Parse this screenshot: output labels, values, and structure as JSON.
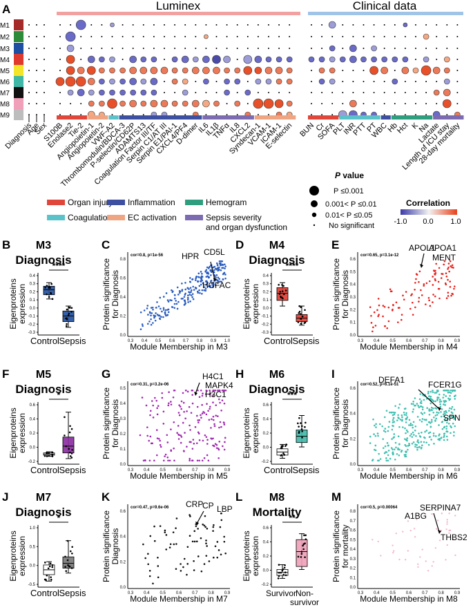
{
  "panel_a": {
    "letter": "A",
    "luminex_title": "Luminex",
    "clinical_title": "Clinical data",
    "modules": [
      "M1",
      "M2",
      "M3",
      "M4",
      "M5",
      "M6",
      "M7",
      "M8",
      "M9"
    ],
    "module_colors": [
      "#a52a2a",
      "#2e8b3a",
      "#1f4fa0",
      "#e03a2f",
      "#f4e42a",
      "#3fb8a8",
      "#111111",
      "#f0a0b8",
      "#bdbdbd"
    ],
    "columns_left": [
      "Diagnosis",
      "Age",
      "Sex"
    ],
    "columns_luminex": [
      "S100B",
      "Enolase2",
      "Tie-2",
      "Angiopoietin-1",
      "Angiopoietin-2",
      "VWF-A2",
      "Thrombomodulin/BDCA-3",
      "P-selectin/CD62P",
      "ADAMTS13",
      "Coagulation Factor III/TF",
      "Serpin C1/AT III",
      "Serpin E1/PAI-1",
      "CXCL4/PF4",
      "D-dimer",
      "IL6",
      "IL1β",
      "TNFα",
      "IL8",
      "CXCL2",
      "Syndecan-1",
      "VCAM-1",
      "ICAM-1",
      "E-selectin"
    ],
    "columns_clinical": [
      "BUN",
      "Cr",
      "SOFA",
      "PLT",
      "INR",
      "PTT",
      "PT",
      "WBC",
      "Hb",
      "Hct",
      "K",
      "Na",
      "Lactate",
      "Length of ICU stay",
      "28-day mortality"
    ],
    "category_legend": [
      {
        "label": "Organ injury",
        "color": "#e0463a"
      },
      {
        "label": "Inflammation",
        "color": "#3d4fa0"
      },
      {
        "label": "Hemogram",
        "color": "#2f9e7e"
      },
      {
        "label": "Coagulation",
        "color": "#5ac2c8"
      },
      {
        "label": "EC activation",
        "color": "#f0a582"
      },
      {
        "label": "Sepsis severity and organ dysfunction",
        "color": "#7c6bb0"
      }
    ],
    "pvalue_legend": {
      "title_italic": "P",
      "title_rest": " value",
      "levels": [
        "P ≤0.001",
        "0.001< P ≤0.01",
        "0.01< P ≤0.05",
        "No significant"
      ]
    },
    "correlation_legend": {
      "title": "Correlation",
      "min": "-1.0",
      "mid": "0.0",
      "max": "1.0"
    }
  },
  "panels": [
    {
      "letter": "B",
      "module": "M3",
      "label": "Diagnosis",
      "ylabel": "Eigenproteins expression",
      "groups": [
        "Control",
        "Sepsis"
      ],
      "sig": "****",
      "color": "#1f4fa0",
      "yticks": [
        "0.4",
        "0.3",
        "0.2",
        "0.1",
        "0.0",
        "-0.1",
        "-0.2",
        "-0.3"
      ]
    },
    {
      "letter": "D",
      "module": "M4",
      "label": "Diagnosis",
      "ylabel": "Eigenproteins expression",
      "groups": [
        "Control",
        "Sepsis"
      ],
      "sig": "****",
      "color": "#e03a2f",
      "yticks": [
        "0.4",
        "0.3",
        "0.2",
        "0.1",
        "0.0",
        "-0.1",
        "-0.2",
        "-0.3"
      ]
    },
    {
      "letter": "F",
      "module": "M5",
      "label": "Diagnosis",
      "ylabel": "Eigenproteins expression",
      "groups": [
        "Control",
        "Sepsis"
      ],
      "sig": "*",
      "color": "#8a2aa0",
      "yticks": [
        "0.6",
        "0.4",
        "0.2",
        "0.0",
        "-0.2"
      ]
    },
    {
      "letter": "H",
      "module": "M6",
      "label": "Diagnosis",
      "ylabel": "Eigenproteins expression",
      "groups": [
        "Control",
        "Sepsis"
      ],
      "sig": "***",
      "color": "#3fb8a8",
      "yticks": [
        "0.6",
        "0.4",
        "0.2",
        "0.0",
        "-0.2"
      ]
    },
    {
      "letter": "J",
      "module": "M7",
      "label": "Diagnosis",
      "ylabel": "Eigenproteins expression",
      "groups": [
        "Control",
        "Sepsis"
      ],
      "sig": "*",
      "color": "#777777",
      "yticks": [
        "1.0",
        "0.5",
        "0.0",
        "-0.5"
      ]
    },
    {
      "letter": "L",
      "module": "M8",
      "label": "Mortality",
      "ylabel": "Eigenproteins expression",
      "groups": [
        "Survivor",
        "Non-survivor"
      ],
      "sig": "**",
      "color": "#f0a0b8",
      "yticks": [
        "0.6",
        "0.4",
        "0.2",
        "0.0",
        "-0.2"
      ]
    }
  ],
  "scatters": [
    {
      "letter": "C",
      "stat": "cor=0.8, p=1e-56",
      "ylabel": "Protein significance for Diagnosis",
      "xlabel": "Module Membership in M3",
      "genes": [
        "HPR",
        "CD5L",
        "HGFAC"
      ],
      "color": "#2a5cc0",
      "xticks": [
        "0.3",
        "0.4",
        "0.5",
        "0.6",
        "0.7",
        "0.8",
        "0.9",
        "1.0"
      ],
      "yticks": [
        "0.8",
        "0.6",
        "0.4",
        "0.2",
        "0.0"
      ]
    },
    {
      "letter": "E",
      "stat": "cor=0.65, p=3.1e-12",
      "ylabel": "Protein significance for Diagnosis",
      "xlabel": "Module Membership in M4",
      "genes": [
        "APOL1",
        "APOA1",
        "MENT"
      ],
      "color": "#e8201a",
      "xticks": [
        "0.3",
        "0.4",
        "0.5",
        "0.6",
        "0.7",
        "0.8",
        "0.9"
      ],
      "yticks": [
        "0.6",
        "0.5",
        "0.4",
        "0.3",
        "0.2",
        "0.1",
        "0.0"
      ]
    },
    {
      "letter": "G",
      "stat": "cor=0.31, p=3.2e-06",
      "ylabel": "Protein significance for Diagnosis",
      "xlabel": "Module Membership in M5",
      "genes": [
        "H4C1",
        "MAPK4",
        "H3C1"
      ],
      "color": "#a02ab0",
      "xticks": [
        "0.3",
        "0.4",
        "0.5",
        "0.6",
        "0.7",
        "0.8",
        "0.9"
      ],
      "yticks": [
        "0.5",
        "0.4",
        "0.3",
        "0.2",
        "0.1",
        "0.0"
      ]
    },
    {
      "letter": "I",
      "stat": "cor=0.52, p=6.1e-51",
      "ylabel": "Protein significance for Diagnosis",
      "xlabel": "Module Membership in M6",
      "genes": [
        "DEFA1",
        "FCER1G",
        "SPN"
      ],
      "color": "#3fc0b0",
      "xticks": [
        "0.3",
        "0.4",
        "0.5",
        "0.6",
        "0.7",
        "0.8",
        "0.9"
      ],
      "yticks": [
        "0.6",
        "0.4",
        "0.2",
        "0.0"
      ]
    },
    {
      "letter": "K",
      "stat": "cor=0.47, p=9.6e-06",
      "ylabel": "Protein significance Diagnosis",
      "xlabel": "Module Membership in M7",
      "genes": [
        "CRP",
        "CP",
        "LBP"
      ],
      "color": "#111111",
      "xticks": [
        "0.3",
        "0.4",
        "0.5",
        "0.6",
        "0.7",
        "0.8",
        "0.9"
      ],
      "yticks": [
        "0.6",
        "0.4",
        "0.2",
        "0.0"
      ]
    },
    {
      "letter": "M",
      "stat": "cor=0.5, p=0.00064",
      "ylabel": "Protein significance for mortality",
      "xlabel": "Module Membership in M8",
      "genes": [
        "SERPINA7",
        "A1BG",
        "THBS2"
      ],
      "color": "#f0a0b8",
      "xticks": [
        "0.3",
        "0.4",
        "0.5",
        "0.6",
        "0.7",
        "0.8",
        "0.9"
      ],
      "yticks": [
        "0.8",
        "0.7",
        "0.6",
        "0.5",
        "0.4",
        "0.3",
        "0.2",
        "0.1",
        "0.0"
      ]
    }
  ]
}
